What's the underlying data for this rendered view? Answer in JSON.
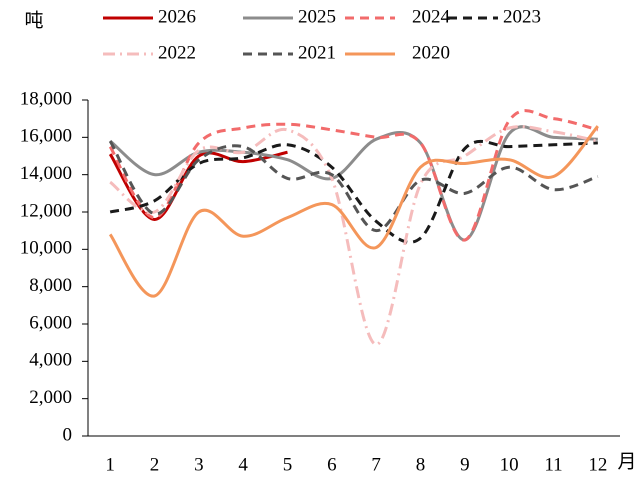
{
  "chart_data": {
    "type": "line",
    "y_label": "吨",
    "x_label": "月",
    "categories": [
      "1",
      "2",
      "3",
      "4",
      "5",
      "6",
      "7",
      "8",
      "9",
      "10",
      "11",
      "12"
    ],
    "series": [
      {
        "name": "2026",
        "color": "#c00000",
        "dash": "solid",
        "values": [
          15100,
          11600,
          15000,
          14700,
          15200,
          null,
          null,
          null,
          null,
          null,
          null,
          null
        ]
      },
      {
        "name": "2025",
        "color": "#8c8c8c",
        "dash": "solid",
        "values": [
          15800,
          14000,
          15200,
          15200,
          14800,
          13800,
          15900,
          15700,
          10500,
          16200,
          16000,
          15900
        ]
      },
      {
        "name": "2024",
        "color": "#f26b6b",
        "dash": "dash",
        "values": [
          15500,
          11700,
          15700,
          16500,
          16700,
          16400,
          16000,
          15700,
          10500,
          16900,
          17000,
          16400
        ]
      },
      {
        "name": "2023",
        "color": "#1a1a1a",
        "dash": "dash",
        "values": [
          12000,
          12600,
          14600,
          14900,
          15600,
          14400,
          11500,
          10600,
          15400,
          15500,
          15600,
          15700
        ]
      },
      {
        "name": "2022",
        "color": "#f5bcbc",
        "dash": "dashdot",
        "values": [
          13600,
          12000,
          15300,
          15200,
          16400,
          13800,
          4900,
          13500,
          15000,
          16500,
          16300,
          15800
        ]
      },
      {
        "name": "2021",
        "color": "#555555",
        "dash": "dash",
        "values": [
          15800,
          11900,
          14800,
          15500,
          13800,
          14000,
          11000,
          13700,
          13000,
          14400,
          13200,
          13900
        ]
      },
      {
        "name": "2020",
        "color": "#f4965a",
        "dash": "solid",
        "values": [
          10800,
          7500,
          12000,
          10700,
          11700,
          12400,
          10100,
          14400,
          14600,
          14800,
          13900,
          16600
        ]
      }
    ],
    "ylim": [
      0,
      18000
    ],
    "yticks": [
      {
        "value": 0,
        "label": "0"
      },
      {
        "value": 2000,
        "label": "2,000"
      },
      {
        "value": 4000,
        "label": "4,000"
      },
      {
        "value": 6000,
        "label": "6,000"
      },
      {
        "value": 8000,
        "label": "8,000"
      },
      {
        "value": 10000,
        "label": "10,000"
      },
      {
        "value": 12000,
        "label": "12,000"
      },
      {
        "value": 14000,
        "label": "14,000"
      },
      {
        "value": 16000,
        "label": "16,000"
      },
      {
        "value": 18000,
        "label": "18,000"
      }
    ],
    "grid": false
  }
}
